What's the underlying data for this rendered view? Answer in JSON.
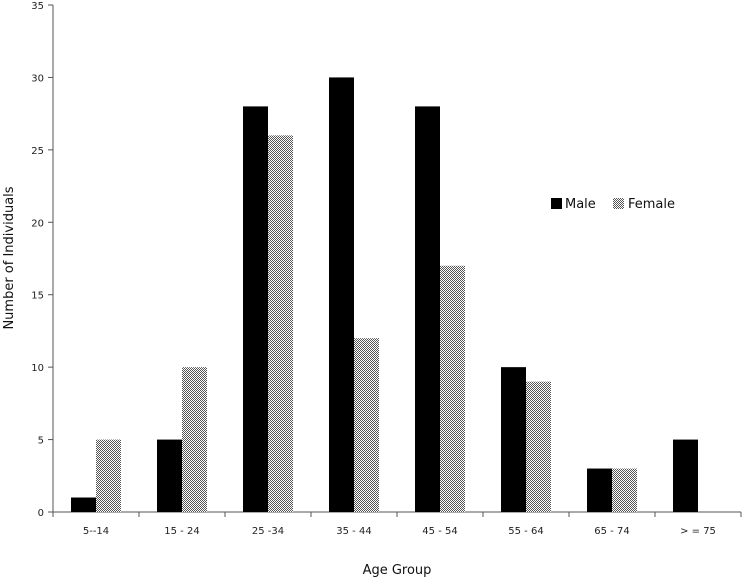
{
  "chart_data": {
    "type": "bar",
    "categories": [
      "5--14",
      "15 - 24",
      "25 -34",
      "35 - 44",
      "45 - 54",
      "55 - 64",
      "65 - 74",
      "> = 75"
    ],
    "series": [
      {
        "name": "Male",
        "values": [
          1,
          5,
          28,
          30,
          28,
          10,
          3,
          5
        ],
        "color": "#000000",
        "pattern": "solid"
      },
      {
        "name": "Female",
        "values": [
          5,
          10,
          26,
          12,
          17,
          9,
          3,
          0
        ],
        "color": "#9a9a9a",
        "pattern": "checkered"
      }
    ],
    "xlabel": "Age Group",
    "ylabel": "Number of Individuals",
    "ylim": [
      0,
      35
    ],
    "yticks": [
      0,
      5,
      10,
      15,
      20,
      25,
      30,
      35
    ],
    "grid": false,
    "legend_position": "right"
  }
}
